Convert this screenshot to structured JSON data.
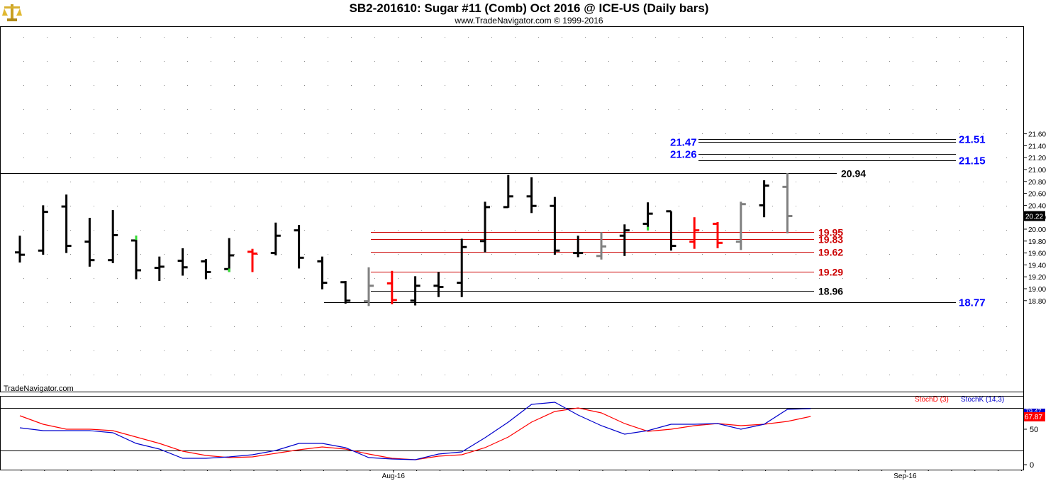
{
  "header": {
    "title": "SB2-201610:  Sugar #11 (Comb) Oct 2016 @ ICE-US  (Daily bars)",
    "subtitle": "www.TradeNavigator.com © 1999-2016",
    "watermark": "TradeNavigator.com",
    "logo_icon": "gold-scales-logo-icon"
  },
  "colors": {
    "bar_black": "#000000",
    "bar_gray": "#808080",
    "bar_red": "#ff0000",
    "green_mark": "#33dd33",
    "resistance_blue": "#0000ff",
    "support_red": "#cc0000",
    "stoch_d": "#ff0000",
    "stoch_k": "#0000cc"
  },
  "chart_data": [
    {
      "type": "ohlc",
      "panel": "price",
      "y_range": [
        18.68,
        21.64
      ],
      "y_ticks": [
        "18.80",
        "19.00",
        "19.20",
        "19.40",
        "19.60",
        "19.80",
        "20.00",
        "20.20",
        "20.40",
        "20.60",
        "20.80",
        "21.00",
        "21.20",
        "21.40",
        "21.60"
      ],
      "last_price_tag": "20.22",
      "x_tick_labels": [
        {
          "label": "Aug-16",
          "bar_index": 16
        },
        {
          "label": "Sep-16",
          "bar_index": 38
        }
      ],
      "bars": [
        {
          "o": 19.61,
          "h": 19.89,
          "l": 19.44,
          "c": 19.57,
          "color": "black"
        },
        {
          "o": 19.64,
          "h": 20.4,
          "l": 19.57,
          "c": 20.29,
          "color": "black"
        },
        {
          "o": 20.38,
          "h": 20.58,
          "l": 19.6,
          "c": 19.72,
          "color": "black"
        },
        {
          "o": 19.79,
          "h": 20.19,
          "l": 19.37,
          "c": 19.48,
          "color": "black"
        },
        {
          "o": 19.48,
          "h": 20.32,
          "l": 19.43,
          "c": 19.9,
          "color": "black"
        },
        {
          "o": 19.81,
          "h": 19.89,
          "l": 19.16,
          "c": 19.31,
          "color": "black",
          "green_high": true
        },
        {
          "o": 19.35,
          "h": 19.54,
          "l": 19.13,
          "c": 19.37,
          "color": "black"
        },
        {
          "o": 19.47,
          "h": 19.68,
          "l": 19.22,
          "c": 19.36,
          "color": "black"
        },
        {
          "o": 19.46,
          "h": 19.5,
          "l": 19.16,
          "c": 19.28,
          "color": "black"
        },
        {
          "o": 19.33,
          "h": 19.85,
          "l": 19.28,
          "c": 19.56,
          "color": "black",
          "green_low": true
        },
        {
          "o": 19.62,
          "h": 19.67,
          "l": 19.28,
          "c": 19.59,
          "color": "red"
        },
        {
          "o": 19.6,
          "h": 20.11,
          "l": 19.56,
          "c": 19.89,
          "color": "black"
        },
        {
          "o": 19.98,
          "h": 20.07,
          "l": 19.34,
          "c": 19.52,
          "color": "black"
        },
        {
          "o": 19.46,
          "h": 19.54,
          "l": 18.99,
          "c": 19.1,
          "color": "black"
        },
        {
          "o": 19.11,
          "h": 19.13,
          "l": 18.75,
          "c": 18.8,
          "color": "black"
        },
        {
          "o": 18.79,
          "h": 19.36,
          "l": 18.71,
          "c": 19.05,
          "color": "gray"
        },
        {
          "o": 19.09,
          "h": 19.3,
          "l": 18.74,
          "c": 18.81,
          "color": "red"
        },
        {
          "o": 18.8,
          "h": 19.21,
          "l": 18.72,
          "c": 19.05,
          "color": "black"
        },
        {
          "o": 19.05,
          "h": 19.28,
          "l": 18.86,
          "c": 19.03,
          "color": "black"
        },
        {
          "o": 19.1,
          "h": 19.84,
          "l": 18.86,
          "c": 19.7,
          "color": "black"
        },
        {
          "o": 19.8,
          "h": 20.46,
          "l": 19.61,
          "c": 20.37,
          "color": "black"
        },
        {
          "o": 20.37,
          "h": 20.91,
          "l": 20.36,
          "c": 20.55,
          "color": "black"
        },
        {
          "o": 20.55,
          "h": 20.87,
          "l": 20.27,
          "c": 20.39,
          "color": "black"
        },
        {
          "o": 20.39,
          "h": 20.54,
          "l": 19.57,
          "c": 19.64,
          "color": "black"
        },
        {
          "o": 19.6,
          "h": 19.89,
          "l": 19.53,
          "c": 19.6,
          "color": "black"
        },
        {
          "o": 19.55,
          "h": 19.95,
          "l": 19.49,
          "c": 19.71,
          "color": "gray"
        },
        {
          "o": 19.89,
          "h": 20.08,
          "l": 19.55,
          "c": 19.98,
          "color": "black"
        },
        {
          "o": 20.09,
          "h": 20.45,
          "l": 19.98,
          "c": 20.26,
          "color": "black",
          "green_low": true
        },
        {
          "o": 20.3,
          "h": 20.3,
          "l": 19.64,
          "c": 19.72,
          "color": "black"
        },
        {
          "o": 19.79,
          "h": 20.2,
          "l": 19.67,
          "c": 19.98,
          "color": "red"
        },
        {
          "o": 20.09,
          "h": 20.12,
          "l": 19.68,
          "c": 19.77,
          "color": "red"
        },
        {
          "o": 19.79,
          "h": 20.46,
          "l": 19.65,
          "c": 20.42,
          "color": "gray"
        },
        {
          "o": 20.4,
          "h": 20.82,
          "l": 20.2,
          "c": 20.73,
          "color": "black"
        },
        {
          "o": 20.71,
          "h": 20.94,
          "l": 19.93,
          "c": 20.22,
          "color": "gray"
        }
      ],
      "levels": [
        {
          "value": 21.51,
          "label": "21.51",
          "role": "resistance"
        },
        {
          "value": 21.47,
          "label": "21.47",
          "role": "resistance"
        },
        {
          "value": 21.26,
          "label": "21.26",
          "role": "resistance"
        },
        {
          "value": 21.15,
          "label": "21.15",
          "role": "resistance"
        },
        {
          "value": 20.94,
          "label": "20.94",
          "role": "high"
        },
        {
          "value": 19.95,
          "label": "19.95",
          "role": "support"
        },
        {
          "value": 19.83,
          "label": "19.83",
          "role": "support"
        },
        {
          "value": 19.62,
          "label": "19.62",
          "role": "support"
        },
        {
          "value": 19.29,
          "label": "19.29",
          "role": "support"
        },
        {
          "value": 18.96,
          "label": "18.96",
          "role": "low"
        },
        {
          "value": 18.77,
          "label": "18.77",
          "role": "low"
        }
      ]
    },
    {
      "type": "line",
      "panel": "stochastic",
      "y_range": [
        0,
        100
      ],
      "y_ticks": [
        "0",
        "50"
      ],
      "reference_lines": [
        80,
        20
      ],
      "legend_d": "StochD (3)",
      "legend_k": "StochK (14,3)",
      "last_k_tag": "79.47",
      "last_d_tag": "67.87",
      "series": [
        {
          "name": "StochD (3)",
          "color": "#ff0000",
          "values": [
            69,
            57,
            50,
            50,
            48,
            39,
            30,
            19,
            13,
            10,
            11,
            16,
            21,
            25,
            22,
            15,
            9,
            7,
            12,
            14,
            24,
            39,
            60,
            75,
            80,
            73,
            58,
            47,
            50,
            55,
            58,
            55,
            57,
            61,
            68
          ]
        },
        {
          "name": "StochK (14,3)",
          "color": "#0000cc",
          "values": [
            52,
            48,
            48,
            48,
            45,
            30,
            22,
            9,
            9,
            11,
            14,
            20,
            30,
            30,
            24,
            10,
            8,
            7,
            15,
            18,
            38,
            60,
            85,
            88,
            70,
            55,
            43,
            48,
            57,
            57,
            58,
            50,
            57,
            78,
            79
          ]
        }
      ]
    }
  ]
}
